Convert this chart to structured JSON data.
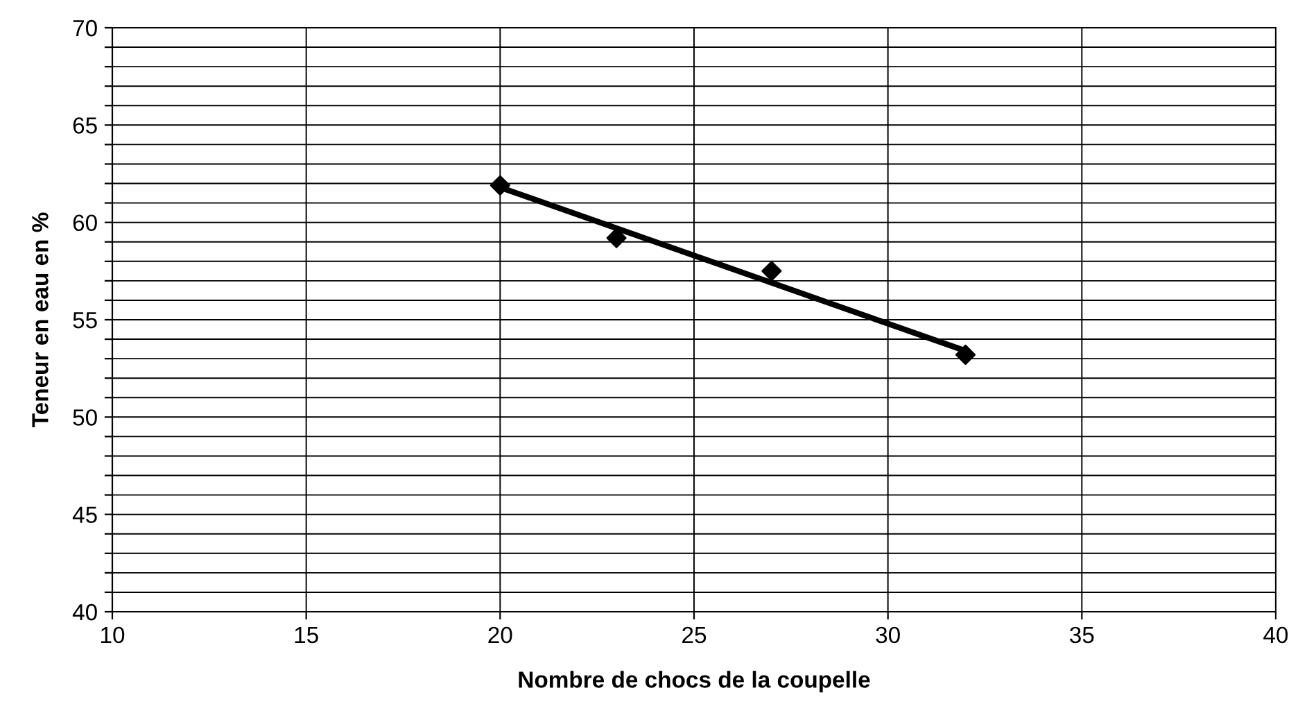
{
  "chart_data": {
    "type": "scatter",
    "xlabel": "Nombre de chocs de la coupelle",
    "ylabel": "Teneur en eau en %",
    "series": [
      {
        "color": "#000000",
        "marker": "diamond",
        "x": [
          20,
          23,
          27,
          32
        ],
        "values": [
          61.9,
          59.2,
          57.5,
          53.2
        ]
      },
      {
        "type": "line",
        "color": "#000000",
        "marker": "none",
        "line_style": "solid",
        "x": [
          20,
          32
        ],
        "values": [
          61.8,
          53.4
        ]
      }
    ],
    "xlim": [
      10,
      40
    ],
    "xticks": [
      10,
      15,
      20,
      25,
      30,
      35,
      40
    ],
    "ylim": [
      40,
      70
    ],
    "yticks": [
      40,
      {
        "value": 41,
        "label": null
      },
      {
        "value": 42,
        "label": null
      },
      {
        "value": 43,
        "label": null
      },
      {
        "value": 44,
        "label": null
      },
      45,
      {
        "value": 46,
        "label": null
      },
      {
        "value": 47,
        "label": null
      },
      {
        "value": 48,
        "label": null
      },
      {
        "value": 49,
        "label": null
      },
      50,
      {
        "value": 51,
        "label": null
      },
      {
        "value": 52,
        "label": null
      },
      {
        "value": 53,
        "label": null
      },
      {
        "value": 54,
        "label": null
      },
      55,
      {
        "value": 56,
        "label": null
      },
      {
        "value": 57,
        "label": null
      },
      {
        "value": 58,
        "label": null
      },
      {
        "value": 59,
        "label": null
      },
      60,
      {
        "value": 61,
        "label": null
      },
      {
        "value": 62,
        "label": null
      },
      {
        "value": 63,
        "label": null
      },
      {
        "value": 64,
        "label": null
      },
      65,
      {
        "value": 66,
        "label": null
      },
      {
        "value": 67,
        "label": null
      },
      {
        "value": 68,
        "label": null
      },
      {
        "value": 69,
        "label": null
      },
      70
    ],
    "grid": true,
    "legend": false
  }
}
